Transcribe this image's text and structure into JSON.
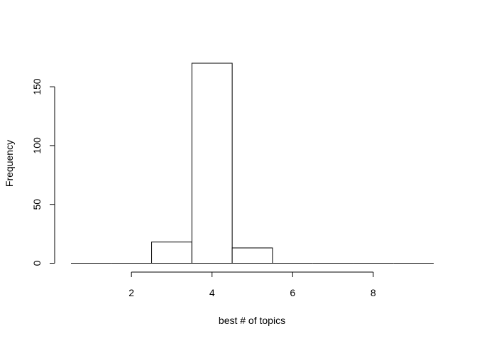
{
  "chart_data": {
    "type": "bar",
    "title": "",
    "xlabel": "best # of topics",
    "ylabel": "Frequency",
    "bins": [
      {
        "start": 0.5,
        "end": 1.5,
        "count": 0
      },
      {
        "start": 1.5,
        "end": 2.5,
        "count": 0
      },
      {
        "start": 2.5,
        "end": 3.5,
        "count": 18
      },
      {
        "start": 3.5,
        "end": 4.5,
        "count": 170
      },
      {
        "start": 4.5,
        "end": 5.5,
        "count": 13
      },
      {
        "start": 5.5,
        "end": 6.5,
        "count": 0
      },
      {
        "start": 6.5,
        "end": 7.5,
        "count": 0
      },
      {
        "start": 7.5,
        "end": 8.5,
        "count": 0
      },
      {
        "start": 8.5,
        "end": 9.5,
        "count": 0
      }
    ],
    "xlim": [
      0.5,
      9.5
    ],
    "ylim": [
      0,
      170
    ],
    "xticks": [
      2,
      4,
      6,
      8
    ],
    "xtick_labels": [
      "2",
      "4",
      "6",
      "8"
    ],
    "yticks": [
      0,
      50,
      100,
      150
    ],
    "ytick_labels": [
      "0",
      "50",
      "100",
      "150"
    ],
    "grid": false,
    "legend": "none"
  }
}
